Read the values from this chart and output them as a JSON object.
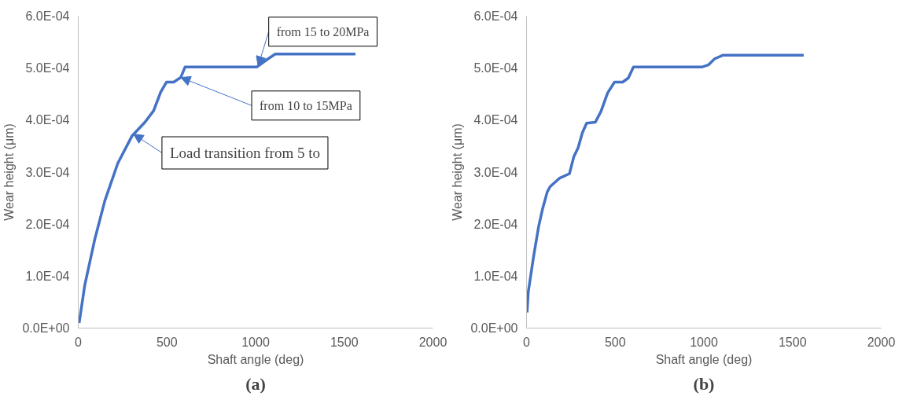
{
  "chart_data": [
    {
      "type": "line",
      "xlabel": "Shaft angle (deg)",
      "ylabel": "Wear height (μm)",
      "series": [
        {
          "color": "#4472c4",
          "x": [
            5,
            37,
            94,
            150,
            223,
            304,
            376,
            425,
            465,
            497,
            538,
            578,
            602,
            1006,
            1071,
            1111,
            1563
          ],
          "values": [
            1e-05,
            8.3e-05,
            0.000172,
            0.000245,
            0.000317,
            0.00037,
            0.000396,
            0.000418,
            0.000454,
            0.000473,
            0.000473,
            0.000482,
            0.000502,
            0.000502,
            0.000518,
            0.000527,
            0.000527
          ]
        }
      ],
      "xlim": [
        0,
        2000
      ],
      "xticks": [
        0,
        500,
        1000,
        1500,
        2000
      ],
      "ylim": [
        0,
        0.0006
      ],
      "yticks": [
        {
          "value": 0,
          "label": "0.0E+00"
        },
        {
          "value": 0.0001,
          "label": "1.0E-04"
        },
        {
          "value": 0.0002,
          "label": "2.0E-04"
        },
        {
          "value": 0.0003,
          "label": "3.0E-04"
        },
        {
          "value": 0.0004,
          "label": "4.0E-04"
        },
        {
          "value": 0.0005,
          "label": "5.0E-04"
        },
        {
          "value": 0.0006,
          "label": "6.0E-04"
        }
      ],
      "grid": false,
      "marker": "none",
      "line_style": "solid",
      "annotations": [
        {
          "text": "from 15 to 20MPa",
          "x": 1014,
          "y": 0.000504
        },
        {
          "text": "from 10 to 15MPa",
          "x": 578,
          "y": 0.000482
        },
        {
          "text": "Load transition from 5 to",
          "x": 312,
          "y": 0.000373
        },
        "(a)"
      ]
    },
    {
      "type": "line",
      "xlabel": "Shaft angle (deg)",
      "ylabel": "Wear height (μm)",
      "series": [
        {
          "color": "#4472c4",
          "x": [
            3,
            10,
            39,
            68,
            91,
            117,
            133,
            185,
            242,
            266,
            291,
            315,
            339,
            388,
            420,
            457,
            496,
            542,
            574,
            603,
            988,
            1025,
            1061,
            1109,
            1563
          ],
          "values": [
            3e-05,
            7e-05,
            0.000136,
            0.000195,
            0.00023,
            0.000262,
            0.000272,
            0.000288,
            0.000297,
            0.000329,
            0.000347,
            0.000376,
            0.000394,
            0.000396,
            0.000417,
            0.000452,
            0.000473,
            0.000473,
            0.000481,
            0.000502,
            0.000502,
            0.000506,
            0.000518,
            0.000525,
            0.000525
          ]
        }
      ],
      "xlim": [
        0,
        2000
      ],
      "xticks": [
        0,
        500,
        1000,
        1500,
        2000
      ],
      "ylim": [
        0,
        0.0006
      ],
      "yticks": [
        {
          "value": 0,
          "label": "0.0E+00"
        },
        {
          "value": 0.0001,
          "label": "1.0E-04"
        },
        {
          "value": 0.0002,
          "label": "2.0E-04"
        },
        {
          "value": 0.0003,
          "label": "3.0E-04"
        },
        {
          "value": 0.0004,
          "label": "4.0E-04"
        },
        {
          "value": 0.0005,
          "label": "5.0E-04"
        },
        {
          "value": 0.0006,
          "label": "6.0E-04"
        }
      ],
      "grid": false,
      "marker": "none",
      "line_style": "solid",
      "annotations": [
        "(b)"
      ]
    }
  ]
}
